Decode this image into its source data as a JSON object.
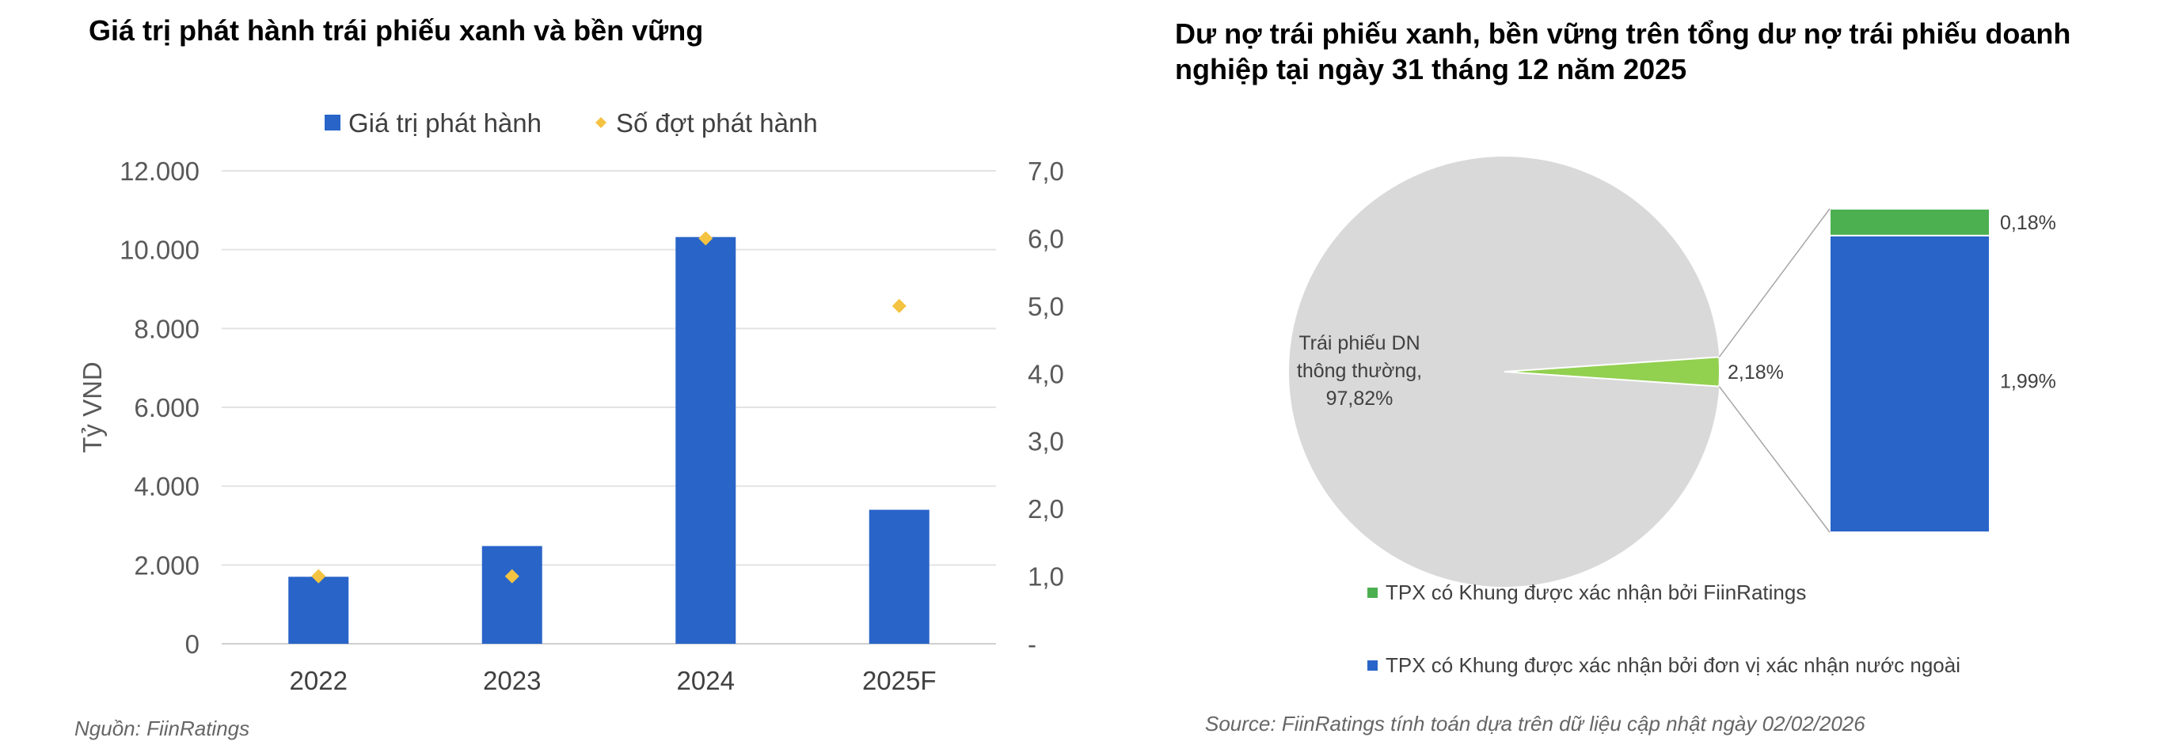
{
  "left_chart": {
    "title": "Giá trị phát hành trái phiếu xanh và bền vững",
    "source": "Nguồn: FiinRatings",
    "chart_data": {
      "type": "bar",
      "categories": [
        "2022",
        "2023",
        "2024",
        "2025F"
      ],
      "series": [
        {
          "name": "Giá trị phát hành",
          "kind": "bar",
          "axis": "left",
          "color": "#2964C8",
          "values": [
            1700,
            2480,
            10320,
            3400
          ]
        },
        {
          "name": "Số đợt phát hành",
          "kind": "marker",
          "axis": "right",
          "color": "#F4C342",
          "values": [
            1.0,
            1.0,
            6.0,
            5.0
          ]
        }
      ],
      "ylabel": "Tỷ VND",
      "ylim": [
        0,
        12000
      ],
      "y2lim": [
        0,
        7
      ],
      "yticks": [
        "0",
        "2.000",
        "4.000",
        "6.000",
        "8.000",
        "10.000",
        "12.000"
      ],
      "y2ticks": [
        "-",
        "1,0",
        "2,0",
        "3,0",
        "4,0",
        "5,0",
        "6,0",
        "7,0"
      ],
      "grid": true,
      "legend": "top-center"
    }
  },
  "right_chart": {
    "title": "Dư nợ trái phiếu xanh, bền vững trên tổng dư nợ trái phiếu doanh nghiệp tại ngày 31 tháng 12 năm 2025",
    "source": "Source: FiinRatings tính toán dựa trên dữ liệu cập nhật ngày 02/02/2026",
    "chart_data": {
      "type": "pie",
      "slices": [
        {
          "label": "Trái phiếu DN thông thường,",
          "value_label": "97,82%",
          "value": 97.82,
          "color": "#D9D9D9"
        },
        {
          "label": "",
          "value_label": "2,18%",
          "value": 2.18,
          "color": "#92D050"
        }
      ],
      "breakdown": {
        "type": "stacked-bar",
        "segments": [
          {
            "name": "TPX có Khung được xác nhận bởi FiinRatings",
            "value_label": "0,18%",
            "value": 0.18,
            "color": "#4CAF50"
          },
          {
            "name": "TPX có Khung được xác nhận bởi đơn vị xác nhận nước ngoài",
            "value_label": "1,99%",
            "value": 1.99,
            "color": "#2964C8"
          }
        ]
      }
    }
  }
}
